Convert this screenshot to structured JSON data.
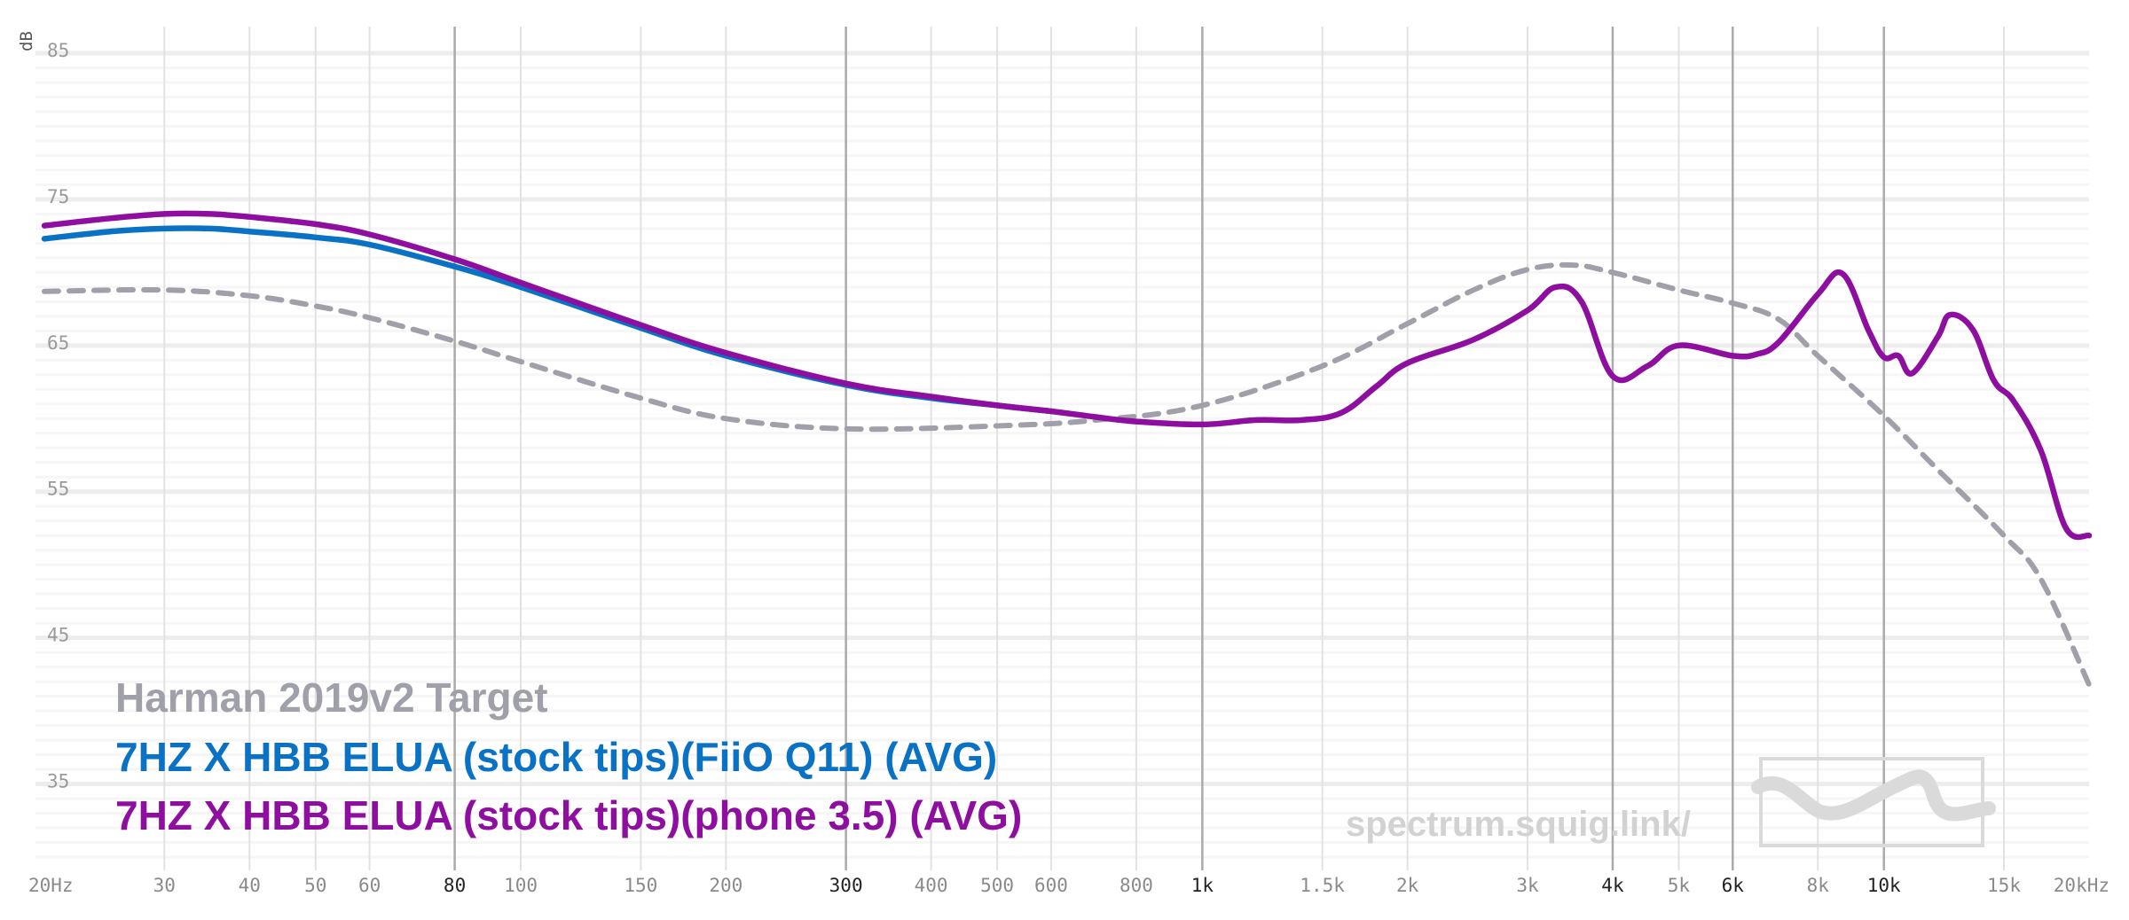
{
  "chart_data": {
    "type": "line",
    "xscale": "log",
    "xlim": [
      20,
      20000
    ],
    "ylim": [
      30,
      85
    ],
    "ylabel": "dB",
    "yticks": [
      "85",
      "75",
      "65",
      "55",
      "45",
      "35"
    ],
    "xticks": [
      {
        "f": 20,
        "label": "20Hz"
      },
      {
        "f": 30,
        "label": "30"
      },
      {
        "f": 40,
        "label": "40"
      },
      {
        "f": 50,
        "label": "50"
      },
      {
        "f": 60,
        "label": "60"
      },
      {
        "f": 80,
        "label": "80",
        "major": true
      },
      {
        "f": 100,
        "label": "100"
      },
      {
        "f": 150,
        "label": "150"
      },
      {
        "f": 200,
        "label": "200"
      },
      {
        "f": 300,
        "label": "300",
        "major": true
      },
      {
        "f": 400,
        "label": "400"
      },
      {
        "f": 500,
        "label": "500"
      },
      {
        "f": 600,
        "label": "600"
      },
      {
        "f": 800,
        "label": "800"
      },
      {
        "f": 1000,
        "label": "1k",
        "major": true
      },
      {
        "f": 1500,
        "label": "1.5k"
      },
      {
        "f": 2000,
        "label": "2k"
      },
      {
        "f": 3000,
        "label": "3k"
      },
      {
        "f": 4000,
        "label": "4k",
        "major": true
      },
      {
        "f": 5000,
        "label": "5k"
      },
      {
        "f": 6000,
        "label": "6k",
        "major": true
      },
      {
        "f": 8000,
        "label": "8k"
      },
      {
        "f": 10000,
        "label": "10k",
        "major": true
      },
      {
        "f": 15000,
        "label": "15k"
      },
      {
        "f": 20000,
        "label": "20kHz"
      }
    ],
    "series": [
      {
        "name": "Harman 2019v2 Target",
        "color": "#a0a0aa",
        "dashed": true,
        "x": [
          20,
          30,
          40,
          50,
          60,
          80,
          100,
          150,
          200,
          300,
          500,
          700,
          1000,
          1500,
          2000,
          2500,
          3000,
          3500,
          4000,
          5000,
          6000,
          7000,
          8000,
          10000,
          12000,
          15000,
          17000,
          20000
        ],
        "y": [
          68.7,
          68.8,
          68.4,
          67.7,
          66.9,
          65.3,
          63.9,
          61.4,
          60.0,
          59.3,
          59.5,
          59.9,
          60.9,
          63.6,
          66.5,
          68.8,
          70.2,
          70.5,
          70.0,
          68.8,
          67.9,
          66.8,
          64.3,
          60.2,
          56.5,
          52.0,
          49.0,
          41.8
        ]
      },
      {
        "name": "7HZ X HBB ELUA (stock tips)(FiiO Q11) (AVG)",
        "color": "#0a72c4",
        "dashed": false,
        "x": [
          20,
          25,
          30,
          35,
          40,
          50,
          60,
          80,
          100,
          150,
          200,
          300,
          400,
          500,
          600
        ],
        "y": [
          72.3,
          72.8,
          73.0,
          73.0,
          72.8,
          72.4,
          71.9,
          70.4,
          69.0,
          66.2,
          64.3,
          62.3,
          61.4,
          60.9,
          60.5
        ]
      },
      {
        "name": "7HZ X HBB ELUA (stock tips)(phone 3.5) (AVG)",
        "color": "#8e0ea0",
        "dashed": false,
        "x": [
          20,
          25,
          30,
          35,
          40,
          50,
          60,
          80,
          100,
          150,
          200,
          300,
          400,
          500,
          600,
          700,
          800,
          1000,
          1200,
          1400,
          1600,
          1800,
          2000,
          2500,
          3000,
          3300,
          3600,
          4000,
          4500,
          5000,
          6000,
          6500,
          7000,
          8000,
          8700,
          9500,
          10000,
          10500,
          11000,
          12000,
          12500,
          13500,
          14500,
          15500,
          17000,
          18500,
          20000
        ],
        "y": [
          73.2,
          73.7,
          74.0,
          74.0,
          73.8,
          73.3,
          72.6,
          70.9,
          69.3,
          66.4,
          64.5,
          62.4,
          61.5,
          60.9,
          60.5,
          60.1,
          59.8,
          59.6,
          59.9,
          59.9,
          60.4,
          62.2,
          63.8,
          65.4,
          67.4,
          69.0,
          68.0,
          62.9,
          63.6,
          65.0,
          64.3,
          64.4,
          65.2,
          68.5,
          69.9,
          66.0,
          64.2,
          64.3,
          63.1,
          65.6,
          67.1,
          66.1,
          62.6,
          61.2,
          57.8,
          52.5,
          52.0
        ]
      }
    ]
  },
  "legend": [
    {
      "label": "Harman 2019v2 Target",
      "color": "#a0a0aa"
    },
    {
      "label": "7HZ X HBB ELUA (stock tips)(FiiO Q11) (AVG)",
      "color": "#0a72c4"
    },
    {
      "label": "7HZ X HBB ELUA (stock tips)(phone 3.5) (AVG)",
      "color": "#8e0ea0"
    }
  ],
  "watermark": {
    "text": "spectrum.squig.link/",
    "logo_icon": "squiggle-logo-icon"
  }
}
